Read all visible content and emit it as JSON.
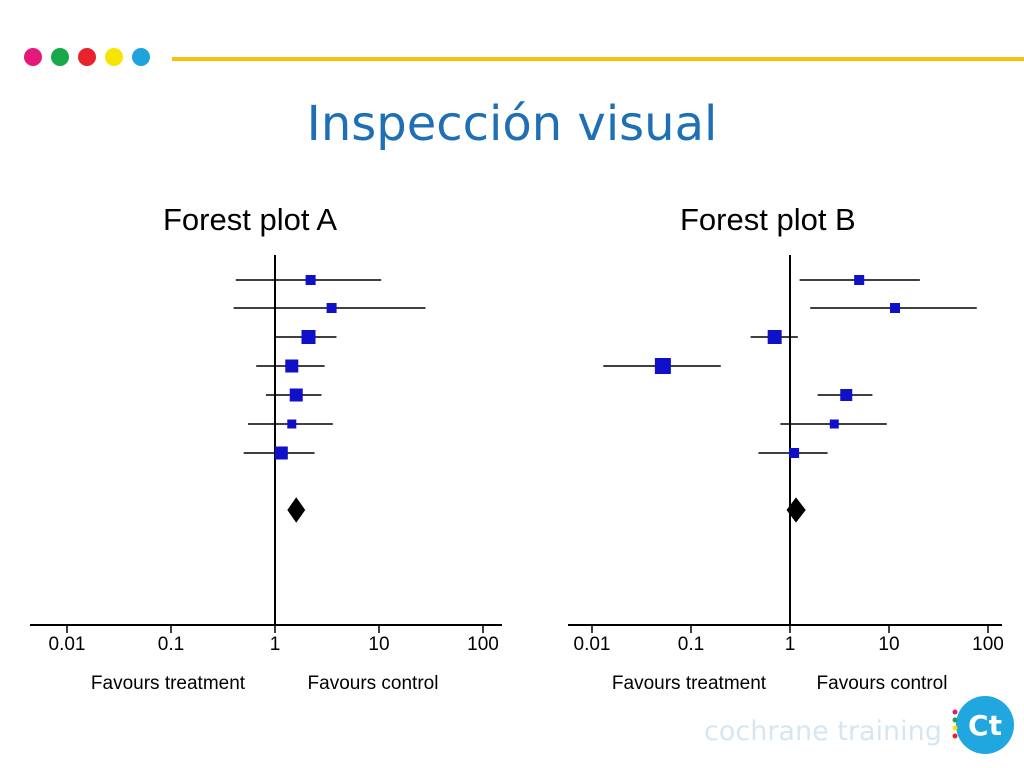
{
  "slide": {
    "title": "Inspección visual",
    "footer": "cochrane training",
    "logo_text": "Ct",
    "accent_dots": [
      "#e5197b",
      "#18a84b",
      "#e9232b",
      "#f6e500",
      "#1fa3dd"
    ],
    "rule_color": "#f5c211",
    "title_color": "#1f6fb5"
  },
  "chart_data": [
    {
      "type": "forest",
      "title": "Forest plot A",
      "x_scale": "log",
      "xlim": [
        0.005,
        150
      ],
      "x_ticks": [
        0.01,
        0.1,
        1,
        10,
        100
      ],
      "x_tick_labels": [
        "0.01",
        "0.1",
        "1",
        "10",
        "100"
      ],
      "null_line": 1,
      "left_label": "Favours treatment",
      "right_label": "Favours control",
      "marker_color": "#1010c8",
      "studies": [
        {
          "est": 2.2,
          "lo": 0.42,
          "hi": 10.5,
          "weight": 0.8
        },
        {
          "est": 3.5,
          "lo": 0.4,
          "hi": 28,
          "weight": 0.8
        },
        {
          "est": 2.1,
          "lo": 1.0,
          "hi": 3.9,
          "weight": 1.2
        },
        {
          "est": 1.45,
          "lo": 0.66,
          "hi": 3.0,
          "weight": 1.1
        },
        {
          "est": 1.6,
          "lo": 0.82,
          "hi": 2.8,
          "weight": 1.1
        },
        {
          "est": 1.45,
          "lo": 0.55,
          "hi": 3.6,
          "weight": 0.7
        },
        {
          "est": 1.15,
          "lo": 0.5,
          "hi": 2.4,
          "weight": 1.1
        }
      ],
      "pooled": {
        "est": 1.6,
        "lo": 1.35,
        "hi": 1.9
      }
    },
    {
      "type": "forest",
      "title": "Forest plot B",
      "x_scale": "log",
      "xlim": [
        0.005,
        150
      ],
      "x_ticks": [
        0.01,
        0.1,
        1,
        10,
        100
      ],
      "x_tick_labels": [
        "0.01",
        "0.1",
        "1",
        "10",
        "100"
      ],
      "null_line": 1,
      "left_label": "Favours treatment",
      "right_label": "Favours control",
      "marker_color": "#1010c8",
      "studies": [
        {
          "est": 5.0,
          "lo": 1.25,
          "hi": 20.5,
          "weight": 0.8
        },
        {
          "est": 11.5,
          "lo": 1.6,
          "hi": 77,
          "weight": 0.8
        },
        {
          "est": 0.7,
          "lo": 0.4,
          "hi": 1.2,
          "weight": 1.2
        },
        {
          "est": 0.052,
          "lo": 0.013,
          "hi": 0.2,
          "weight": 1.4
        },
        {
          "est": 3.7,
          "lo": 1.9,
          "hi": 6.8,
          "weight": 1.0
        },
        {
          "est": 2.8,
          "lo": 0.8,
          "hi": 9.5,
          "weight": 0.7
        },
        {
          "est": 1.1,
          "lo": 0.48,
          "hi": 2.4,
          "weight": 0.8
        }
      ],
      "pooled": {
        "est": 1.15,
        "lo": 0.95,
        "hi": 1.4
      }
    }
  ]
}
